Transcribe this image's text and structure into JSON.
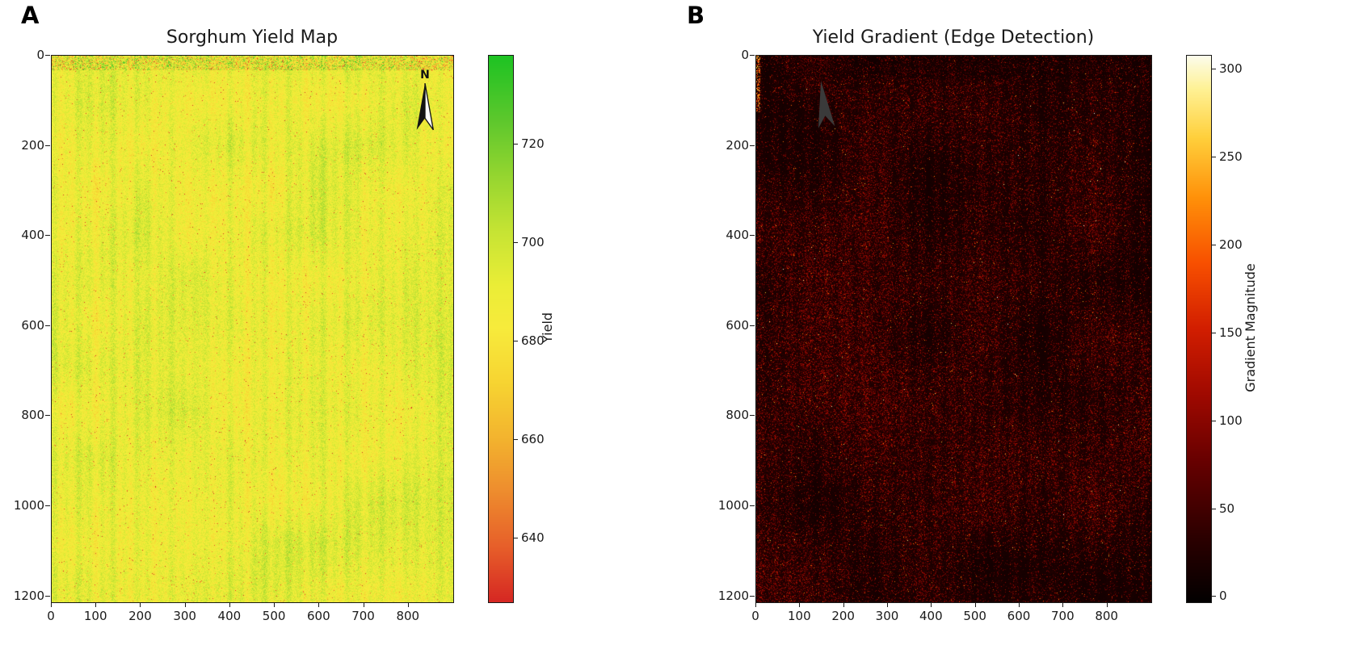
{
  "figure": {
    "background": "#ffffff",
    "panels": [
      {
        "label": "A",
        "north_label": "N"
      },
      {
        "label": "B"
      }
    ]
  },
  "chart_data": [
    {
      "type": "heatmap",
      "panel": "A",
      "title": "Sorghum Yield Map",
      "x_range": [
        0,
        900
      ],
      "y_range": [
        0,
        1213
      ],
      "x_ticks": [
        0,
        100,
        200,
        300,
        400,
        500,
        600,
        700,
        800
      ],
      "y_ticks": [
        0,
        200,
        400,
        600,
        800,
        1000,
        1200
      ],
      "y_axis_inverted": true,
      "grid": false,
      "colorbar": {
        "label": "Yield",
        "ticks": [
          720,
          700,
          680,
          660,
          640
        ],
        "vmin": 627,
        "vmax": 738,
        "colormap": "RdYlGn"
      },
      "north_arrow": true,
      "summary": "Dense yield raster, mean ~690, with thin vertical planting-row stripes alternating yellow (~672) and green (~706) columns, scattered low-yield red speckles (~640) and a noisier red/green mottled band along the top edge",
      "render": {
        "seed": 101,
        "base": 691,
        "noise": 22,
        "stripe_amp": 4.5,
        "region_amp": 7,
        "region_cell": 55,
        "speckle_prob": 0.012,
        "speckle_drop": 38,
        "edge_band": 18,
        "edge_noise": 60
      }
    },
    {
      "type": "heatmap",
      "panel": "B",
      "title": "Yield Gradient (Edge Detection)",
      "x_range": [
        0,
        900
      ],
      "y_range": [
        0,
        1213
      ],
      "x_ticks": [
        0,
        100,
        200,
        300,
        400,
        500,
        600,
        700,
        800
      ],
      "y_ticks": [
        0,
        200,
        400,
        600,
        800,
        1000,
        1200
      ],
      "y_axis_inverted": true,
      "grid": false,
      "colorbar": {
        "label": "Gradient Magnitude",
        "ticks": [
          300,
          250,
          200,
          150,
          100,
          50,
          0
        ],
        "vmin": -3,
        "vmax": 308,
        "colormap": "hot"
      },
      "north_arrow": true,
      "summary": "Gradient magnitude of the yield map: mostly low values (<40, near-black to dark red) with dense red speckles 50-150 concentrated along row edges forming vertical striping, sparse bright orange/yellow spots above 200, bright streak at top-left edge",
      "render": {
        "seed": 202,
        "base": 14,
        "noise": 34,
        "region_cell": 70,
        "speckle_prob": 0.27,
        "speckle_add": 95,
        "bright_prob": 0.014,
        "bright_add": 190
      }
    }
  ]
}
